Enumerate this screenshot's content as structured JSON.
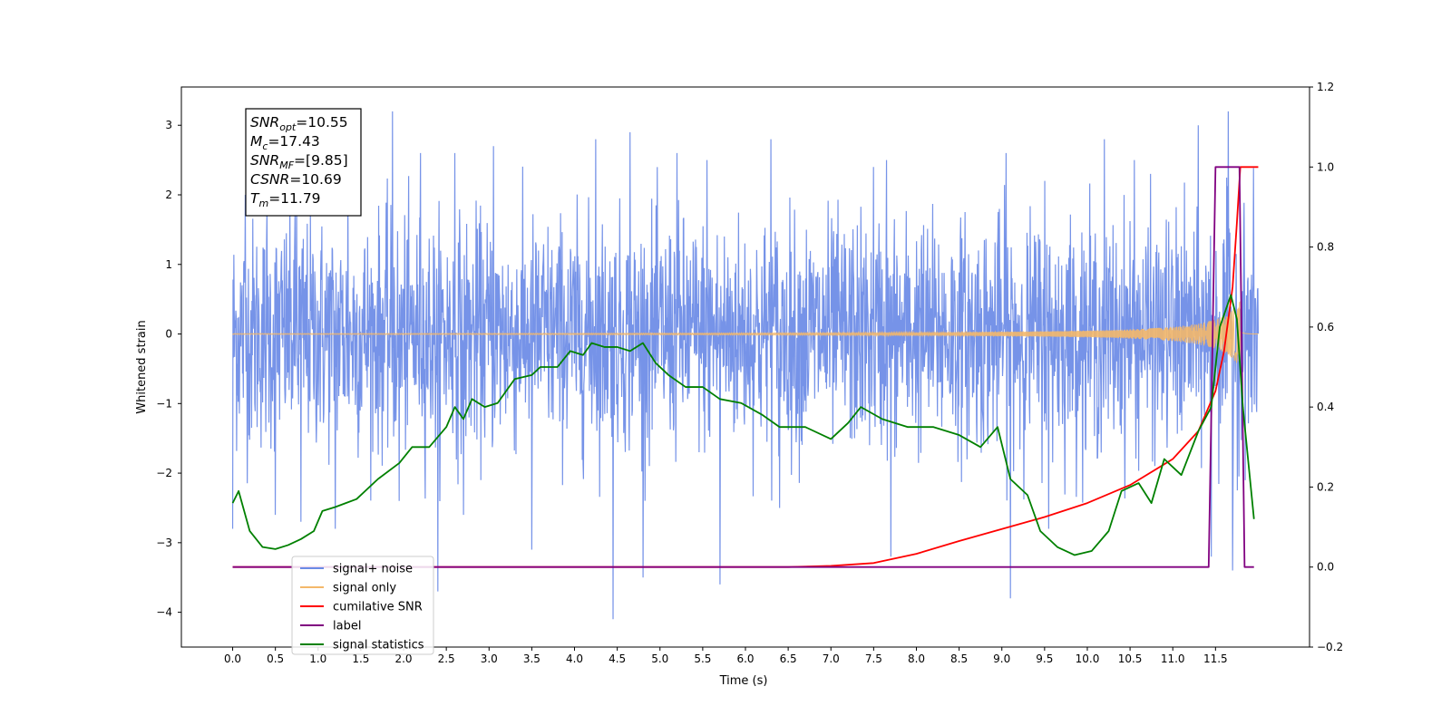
{
  "chart_data": {
    "type": "line",
    "xlabel": "Time (s)",
    "ylabel_left": "Whitened strain",
    "ylabel_right": "",
    "xlim": [
      -0.6,
      12.6
    ],
    "ylim_left": [
      -4.5,
      3.55
    ],
    "ylim_right": [
      -0.2,
      1.2
    ],
    "x_ticks": [
      0.0,
      0.5,
      1.0,
      1.5,
      2.0,
      2.5,
      3.0,
      3.5,
      4.0,
      4.5,
      5.0,
      5.5,
      6.0,
      6.5,
      7.0,
      7.5,
      8.0,
      8.5,
      9.0,
      9.5,
      10.0,
      10.5,
      11.0,
      11.5
    ],
    "x_tick_labels": [
      "0.0",
      "0.5",
      "1.0",
      "1.5",
      "2.0",
      "2.5",
      "3.0",
      "3.5",
      "4.0",
      "4.5",
      "5.0",
      "5.5",
      "6.0",
      "6.5",
      "7.0",
      "7.5",
      "8.0",
      "8.5",
      "9.0",
      "9.5",
      "10.0",
      "10.5",
      "11.0",
      "11.5"
    ],
    "y_left_ticks": [
      3,
      2,
      1,
      0,
      -1,
      -2,
      -3,
      -4
    ],
    "y_left_tick_labels": [
      "3",
      "2",
      "1",
      "0",
      "−1",
      "−2",
      "−3",
      "−4"
    ],
    "y_right_ticks": [
      1.2,
      1.0,
      0.8,
      0.6,
      0.4,
      0.2,
      0.0,
      -0.2
    ],
    "y_right_tick_labels": [
      "1.2",
      "1.0",
      "0.8",
      "0.6",
      "0.4",
      "0.2",
      "0.0",
      "−0.2"
    ],
    "legend_position": "lower-left",
    "annotation": {
      "lines": [
        {
          "sym": "SNR",
          "sub": "opt",
          "val": "=10.55"
        },
        {
          "sym": "M",
          "sub": "c",
          "val": "=17.43"
        },
        {
          "sym": "SNR",
          "sub": "MF",
          "val": "=[9.85]"
        },
        {
          "sym": "CSNR",
          "sub": "",
          "val": "=10.69"
        },
        {
          "sym": "T",
          "sub": "m",
          "val": "=11.79"
        }
      ]
    },
    "series": [
      {
        "name": "signal+ noise",
        "axis": "left",
        "color": "#6a8ae6",
        "style": "noise",
        "x_range": [
          0,
          12.0
        ],
        "baseline_amplitude": 1.05,
        "peaks": [
          [
            0.0,
            2.1
          ],
          [
            0.15,
            2.0
          ],
          [
            0.4,
            1.8
          ],
          [
            0.75,
            2.0
          ],
          [
            1.35,
            2.3
          ],
          [
            1.87,
            3.2
          ],
          [
            2.2,
            2.6
          ],
          [
            2.6,
            2.6
          ],
          [
            3.05,
            2.7
          ],
          [
            3.5,
            3.1
          ],
          [
            4.25,
            2.8
          ],
          [
            4.65,
            2.9
          ],
          [
            5.2,
            2.6
          ],
          [
            5.55,
            2.5
          ],
          [
            6.3,
            2.8
          ],
          [
            7.5,
            2.4
          ],
          [
            7.65,
            2.5
          ],
          [
            9.05,
            2.6
          ],
          [
            9.5,
            2.2
          ],
          [
            10.2,
            2.8
          ],
          [
            10.55,
            2.5
          ],
          [
            11.3,
            3.0
          ],
          [
            11.65,
            3.2
          ]
        ],
        "troughs": [
          [
            0.0,
            -2.8
          ],
          [
            0.5,
            -2.6
          ],
          [
            0.8,
            -2.7
          ],
          [
            1.2,
            -2.8
          ],
          [
            1.95,
            -2.4
          ],
          [
            2.4,
            -3.7
          ],
          [
            2.7,
            -2.6
          ],
          [
            3.5,
            -3.1
          ],
          [
            4.45,
            -4.1
          ],
          [
            4.8,
            -3.5
          ],
          [
            5.7,
            -3.6
          ],
          [
            6.4,
            -2.5
          ],
          [
            7.7,
            -3.2
          ],
          [
            9.1,
            -3.8
          ],
          [
            9.55,
            -2.8
          ],
          [
            11.45,
            -3.2
          ],
          [
            11.7,
            -3.4
          ]
        ]
      },
      {
        "name": "signal only",
        "axis": "left",
        "color": "#f4b86a",
        "style": "chirp",
        "t_merger": 11.79,
        "amplitude_at_merger": 0.5
      },
      {
        "name": "cumilative SNR",
        "axis": "right",
        "color": "#ff0000",
        "x": [
          0.0,
          6.5,
          7.0,
          7.5,
          8.0,
          8.5,
          9.0,
          9.5,
          10.0,
          10.5,
          11.0,
          11.3,
          11.5,
          11.6,
          11.7,
          11.75,
          11.79,
          11.9,
          12.0
        ],
        "y": [
          0.0,
          0.0,
          0.003,
          0.01,
          0.033,
          0.065,
          0.095,
          0.125,
          0.16,
          0.205,
          0.27,
          0.34,
          0.44,
          0.54,
          0.7,
          0.86,
          1.0,
          1.0,
          1.0
        ]
      },
      {
        "name": "label",
        "axis": "right",
        "color": "#800080",
        "x": [
          0.0,
          11.42,
          11.5,
          11.78,
          11.78,
          11.84,
          11.95
        ],
        "y": [
          0.0,
          0.0,
          1.0,
          1.0,
          1.0,
          0.0,
          0.0
        ]
      },
      {
        "name": "signal statistics",
        "axis": "right",
        "color": "#008000",
        "x": [
          0.0,
          0.07,
          0.2,
          0.35,
          0.5,
          0.65,
          0.8,
          0.95,
          1.05,
          1.2,
          1.45,
          1.7,
          1.95,
          2.1,
          2.3,
          2.5,
          2.6,
          2.7,
          2.8,
          2.95,
          3.1,
          3.3,
          3.5,
          3.6,
          3.8,
          3.95,
          4.1,
          4.2,
          4.35,
          4.5,
          4.65,
          4.8,
          4.95,
          5.1,
          5.3,
          5.5,
          5.7,
          5.95,
          6.2,
          6.4,
          6.7,
          7.0,
          7.2,
          7.35,
          7.6,
          7.9,
          8.2,
          8.5,
          8.75,
          8.95,
          9.1,
          9.3,
          9.45,
          9.65,
          9.85,
          10.05,
          10.25,
          10.4,
          10.6,
          10.75,
          10.9,
          11.1,
          11.3,
          11.45,
          11.55,
          11.68,
          11.75,
          11.82,
          11.95
        ],
        "y": [
          0.16,
          0.19,
          0.09,
          0.05,
          0.045,
          0.055,
          0.07,
          0.09,
          0.14,
          0.15,
          0.17,
          0.22,
          0.26,
          0.3,
          0.3,
          0.35,
          0.4,
          0.37,
          0.42,
          0.4,
          0.41,
          0.47,
          0.48,
          0.5,
          0.5,
          0.54,
          0.53,
          0.56,
          0.55,
          0.55,
          0.54,
          0.56,
          0.51,
          0.48,
          0.45,
          0.45,
          0.42,
          0.41,
          0.38,
          0.35,
          0.35,
          0.32,
          0.36,
          0.4,
          0.37,
          0.35,
          0.35,
          0.33,
          0.3,
          0.35,
          0.22,
          0.18,
          0.09,
          0.05,
          0.03,
          0.04,
          0.09,
          0.19,
          0.21,
          0.16,
          0.27,
          0.23,
          0.34,
          0.4,
          0.6,
          0.68,
          0.62,
          0.4,
          0.12
        ]
      }
    ]
  }
}
